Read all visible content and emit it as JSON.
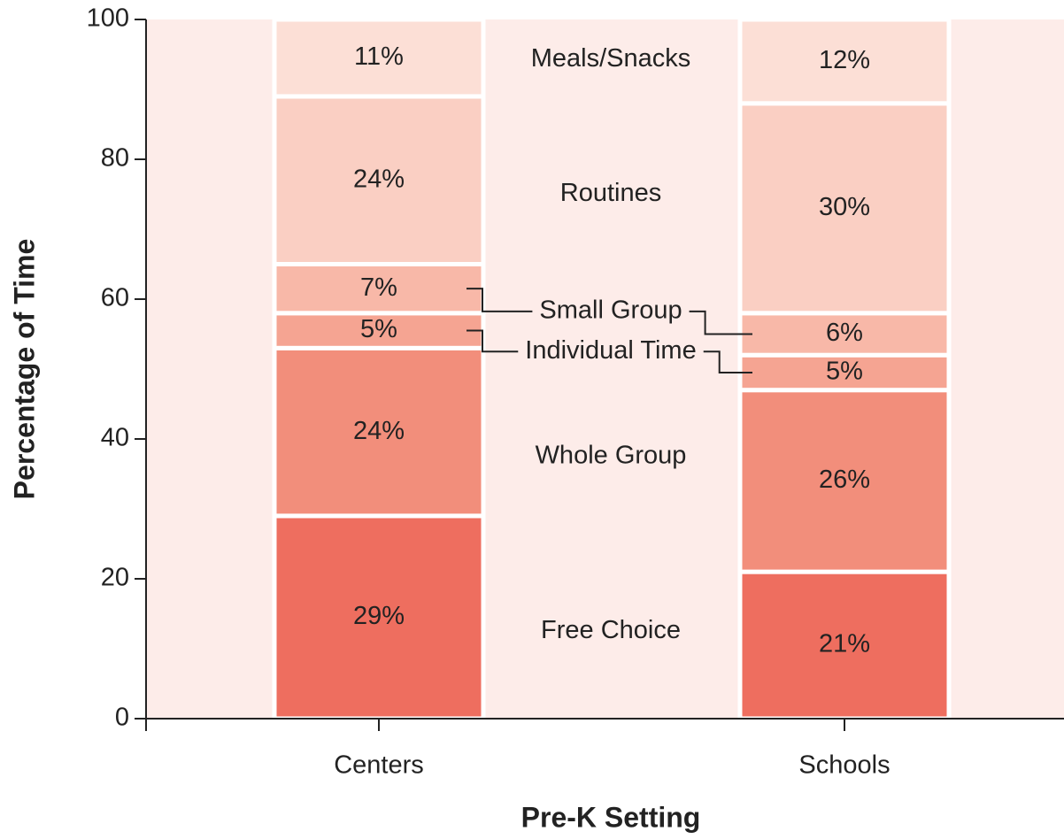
{
  "chart_data": {
    "type": "stacked_bar",
    "x_label": "Pre-K Setting",
    "y_label": "Percentage of Time",
    "categories": [
      "Centers",
      "Schools"
    ],
    "series": [
      {
        "name": "Free Choice",
        "color": "#ee6e5f",
        "values": [
          29,
          21
        ],
        "value_labels": [
          "29%",
          "21%"
        ]
      },
      {
        "name": "Whole Group",
        "color": "#f28e7b",
        "values": [
          24,
          26
        ],
        "value_labels": [
          "24%",
          "26%"
        ]
      },
      {
        "name": "Individual Time",
        "color": "#f5a492",
        "values": [
          5,
          5
        ],
        "value_labels": [
          "5%",
          "5%"
        ]
      },
      {
        "name": "Small Group",
        "color": "#f8b8a8",
        "values": [
          7,
          6
        ],
        "value_labels": [
          "7%",
          "6%"
        ]
      },
      {
        "name": "Routines",
        "color": "#facfc3",
        "values": [
          24,
          30
        ],
        "value_labels": [
          "24%",
          "30%"
        ]
      },
      {
        "name": "Meals/Snacks",
        "color": "#fcdfd6",
        "values": [
          11,
          12
        ],
        "value_labels": [
          "11%",
          "12%"
        ]
      }
    ],
    "ylim": [
      0,
      100
    ],
    "yticks": [
      0,
      20,
      40,
      60,
      80,
      100
    ],
    "background": "#fdece9"
  }
}
